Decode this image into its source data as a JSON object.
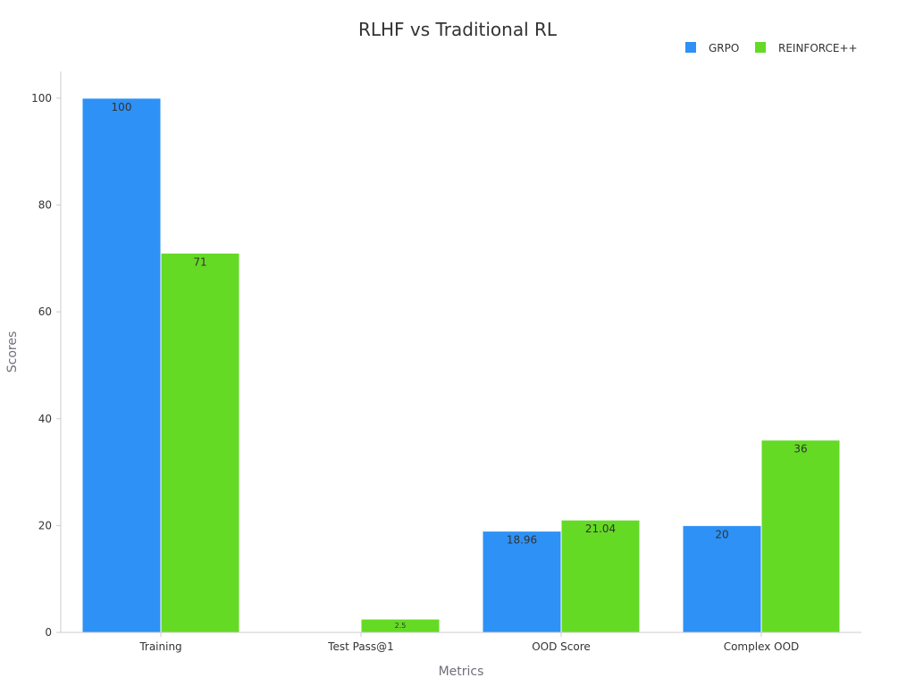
{
  "chart_data": {
    "type": "bar",
    "title": "RLHF vs Traditional RL",
    "xlabel": "Metrics",
    "ylabel": "Scores",
    "categories": [
      "Training",
      "Test Pass@1",
      "OOD Score",
      "Complex OOD"
    ],
    "series": [
      {
        "name": "GRPO",
        "color": "#2e91f6",
        "values": [
          100,
          null,
          18.96,
          20
        ],
        "labels": [
          "100",
          "",
          "18.96",
          "20"
        ]
      },
      {
        "name": "REINFORCE++",
        "color": "#64da25",
        "values": [
          71,
          2.5,
          21.04,
          36
        ],
        "labels": [
          "71",
          "2.5",
          "21.04",
          "36"
        ]
      }
    ],
    "ylim": [
      0,
      105
    ],
    "yticks": [
      0,
      20,
      40,
      60,
      80,
      100
    ],
    "ytick_labels": [
      "0",
      "20",
      "40",
      "60",
      "80",
      "100"
    ],
    "grid": false,
    "legend_position": "top-right"
  }
}
